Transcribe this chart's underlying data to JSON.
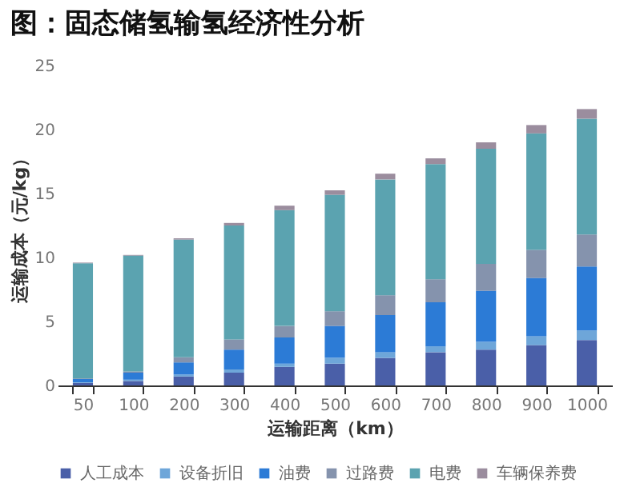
{
  "chart_data": {
    "type": "bar",
    "stacked": true,
    "title": "图：固态储氢输氢经济性分析",
    "xlabel": "运输距离（km）",
    "ylabel": "运输成本（元/kg）",
    "categories": [
      "50",
      "100",
      "200",
      "300",
      "400",
      "500",
      "600",
      "700",
      "800",
      "900",
      "1000"
    ],
    "ylim": [
      0,
      25
    ],
    "yticks": [
      0,
      5,
      10,
      15,
      20,
      25
    ],
    "grid": false,
    "legend": "bottom",
    "series": [
      {
        "name": "人工成本",
        "color": "#4a5fa8",
        "values": [
          0.2,
          0.35,
          0.7,
          1.0,
          1.45,
          1.7,
          2.15,
          2.6,
          2.8,
          3.15,
          3.55
        ]
      },
      {
        "name": "设备折旧",
        "color": "#6ea6d9",
        "values": [
          0.05,
          0.1,
          0.15,
          0.25,
          0.25,
          0.45,
          0.45,
          0.45,
          0.6,
          0.7,
          0.75
        ]
      },
      {
        "name": "油费",
        "color": "#2c7bd6",
        "values": [
          0.25,
          0.55,
          0.95,
          1.55,
          2.05,
          2.5,
          2.9,
          3.45,
          4.0,
          4.55,
          5.0
        ]
      },
      {
        "name": "过路费",
        "color": "#8593ad",
        "values": [
          0.05,
          0.1,
          0.4,
          0.8,
          0.9,
          1.15,
          1.55,
          1.8,
          2.1,
          2.2,
          2.5
        ]
      },
      {
        "name": "电费",
        "color": "#5ba3b0",
        "values": [
          9.0,
          9.05,
          9.2,
          8.9,
          9.05,
          9.1,
          9.05,
          9.0,
          9.0,
          9.1,
          9.05
        ]
      },
      {
        "name": "车辆保养费",
        "color": "#9b8d9e",
        "values": [
          0.05,
          0.05,
          0.1,
          0.2,
          0.35,
          0.35,
          0.45,
          0.45,
          0.5,
          0.65,
          0.75
        ]
      }
    ]
  }
}
